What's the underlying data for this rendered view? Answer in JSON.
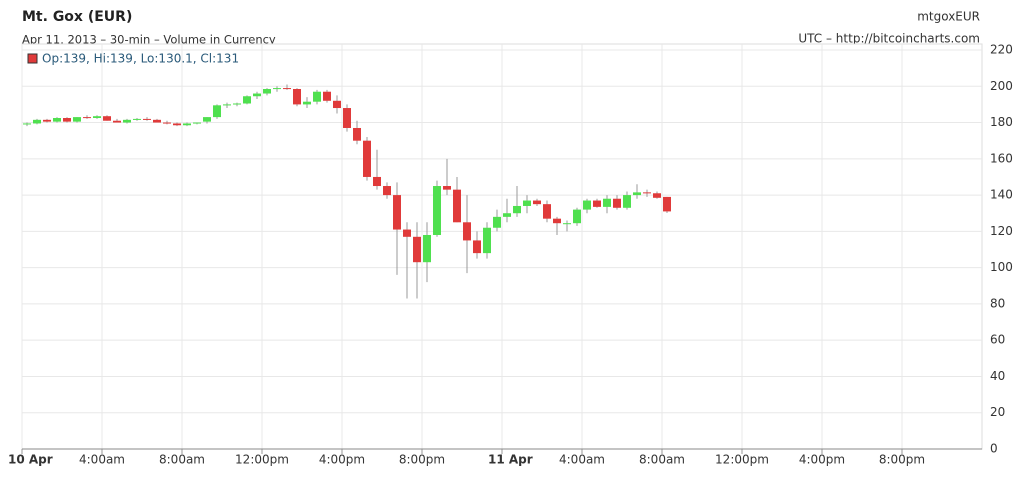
{
  "chart_data": {
    "type": "candlestick",
    "title": "Mt. Gox (EUR)",
    "subtitle": "Apr 11, 2013 – 30-min – Volume in Currency",
    "symbol": "mtgoxEUR",
    "source": "UTC – http://bitcoincharts.com",
    "legend_text": "Op:139, Hi:139, Lo:130.1, Cl:131",
    "up_color": "#4fe04f",
    "down_color": "#e03a3a",
    "wick_color": "#9a9a9a",
    "grid": true,
    "x": [
      "2013-04-10T00:00",
      "2013-04-10T00:30",
      "2013-04-10T01:00",
      "2013-04-10T01:30",
      "2013-04-10T02:00",
      "2013-04-10T02:30",
      "2013-04-10T03:00",
      "2013-04-10T03:30",
      "2013-04-10T04:00",
      "2013-04-10T04:30",
      "2013-04-10T05:00",
      "2013-04-10T05:30",
      "2013-04-10T06:00",
      "2013-04-10T06:30",
      "2013-04-10T07:00",
      "2013-04-10T07:30",
      "2013-04-10T08:00",
      "2013-04-10T08:30",
      "2013-04-10T09:00",
      "2013-04-10T09:30",
      "2013-04-10T10:00",
      "2013-04-10T10:30",
      "2013-04-10T11:00",
      "2013-04-10T11:30",
      "2013-04-10T12:00",
      "2013-04-10T12:30",
      "2013-04-10T13:00",
      "2013-04-10T13:30",
      "2013-04-10T14:00",
      "2013-04-10T14:30",
      "2013-04-10T15:00",
      "2013-04-10T15:30",
      "2013-04-10T16:00",
      "2013-04-10T16:30",
      "2013-04-10T17:00",
      "2013-04-10T17:30",
      "2013-04-10T18:00",
      "2013-04-10T18:30",
      "2013-04-10T19:00",
      "2013-04-10T19:30",
      "2013-04-10T20:00",
      "2013-04-10T20:30",
      "2013-04-10T21:00",
      "2013-04-10T21:30",
      "2013-04-10T22:00",
      "2013-04-10T22:30",
      "2013-04-10T23:00",
      "2013-04-10T23:30",
      "2013-04-11T00:00",
      "2013-04-11T00:30",
      "2013-04-11T01:00",
      "2013-04-11T01:30",
      "2013-04-11T02:00",
      "2013-04-11T02:30",
      "2013-04-11T03:00",
      "2013-04-11T03:30",
      "2013-04-11T04:00",
      "2013-04-11T04:30",
      "2013-04-11T05:00",
      "2013-04-11T05:30",
      "2013-04-11T06:00",
      "2013-04-11T06:30",
      "2013-04-11T07:00",
      "2013-04-11T07:30",
      "2013-04-11T08:00"
    ],
    "open": [
      179,
      179.5,
      181.5,
      180.5,
      182.5,
      180.5,
      183,
      182.5,
      183.5,
      181,
      180,
      181.5,
      182,
      181.5,
      180,
      179.5,
      178.5,
      179.5,
      180.5,
      183,
      189.5,
      190,
      190.5,
      194.5,
      196,
      198.5,
      199,
      198.5,
      190,
      191.5,
      197,
      192,
      188,
      177,
      170,
      150,
      145,
      140,
      121,
      117,
      103,
      118,
      145,
      143,
      125,
      115,
      108,
      122,
      128,
      130,
      134,
      137,
      135,
      127,
      124.5,
      124.5,
      132,
      137,
      133.5,
      138,
      133,
      140,
      141.5,
      141,
      139
    ],
    "high": [
      180,
      182,
      182,
      183,
      183,
      183,
      184,
      184,
      184,
      182,
      182,
      182.5,
      183,
      182,
      181,
      180,
      180,
      180,
      183,
      190,
      191,
      191,
      195,
      197,
      199,
      200,
      201,
      199,
      194,
      198,
      198,
      195,
      190,
      181,
      172,
      165,
      147,
      147,
      125,
      125,
      125,
      148,
      160,
      150,
      140,
      120,
      125,
      132,
      138,
      145,
      140,
      138,
      137,
      128,
      126,
      133,
      138,
      138,
      140,
      140,
      142,
      146,
      143,
      142,
      139
    ],
    "low": [
      178,
      179,
      180,
      180,
      180,
      180,
      182,
      182,
      181,
      180,
      179.5,
      181,
      181,
      180,
      179,
      178,
      178,
      179,
      179.5,
      182,
      188,
      189,
      190,
      193,
      195,
      197,
      198,
      189,
      188,
      190,
      191,
      185,
      175,
      168,
      148,
      143,
      138,
      96,
      83,
      83,
      92,
      117,
      140,
      125,
      97,
      105,
      105,
      120,
      125,
      128,
      130,
      134,
      125,
      118,
      120,
      123,
      130,
      133,
      130,
      132,
      132,
      138,
      139,
      138,
      130.1
    ],
    "close": [
      179.5,
      181.5,
      180.5,
      182.5,
      180.5,
      183,
      182.5,
      183.5,
      181,
      180,
      181.5,
      182,
      181.5,
      180,
      179.5,
      178.5,
      179.5,
      180,
      183,
      189.5,
      190,
      190.5,
      194.5,
      196,
      198.5,
      199,
      198.5,
      190,
      191.5,
      197,
      192,
      188,
      177,
      170,
      150,
      145,
      140,
      121,
      117,
      103,
      118,
      145,
      143,
      125,
      115,
      108,
      122,
      128,
      130,
      134,
      137,
      135,
      127,
      124.5,
      124.5,
      132,
      137,
      133.5,
      138,
      133,
      140,
      141.5,
      141,
      138.5,
      131
    ],
    "xlim": [
      "2013-04-10T00:00",
      "2013-04-12T00:00"
    ],
    "xticks": [
      {
        "value": "2013-04-10T00:00",
        "label": "10 Apr"
      },
      {
        "value": "2013-04-10T04:00",
        "label": "4:00am"
      },
      {
        "value": "2013-04-10T08:00",
        "label": "8:00am"
      },
      {
        "value": "2013-04-10T12:00",
        "label": "12:00pm"
      },
      {
        "value": "2013-04-10T16:00",
        "label": "4:00pm"
      },
      {
        "value": "2013-04-10T20:00",
        "label": "8:00pm"
      },
      {
        "value": "2013-04-11T00:00",
        "label": "11 Apr"
      },
      {
        "value": "2013-04-11T04:00",
        "label": "4:00am"
      },
      {
        "value": "2013-04-11T08:00",
        "label": "8:00am"
      },
      {
        "value": "2013-04-11T12:00",
        "label": "12:00pm"
      },
      {
        "value": "2013-04-11T16:00",
        "label": "4:00pm"
      },
      {
        "value": "2013-04-11T20:00",
        "label": "8:00pm"
      }
    ],
    "ylim": [
      0,
      220
    ],
    "yticks": [
      0,
      20,
      40,
      60,
      80,
      100,
      120,
      140,
      160,
      180,
      200,
      220
    ]
  }
}
